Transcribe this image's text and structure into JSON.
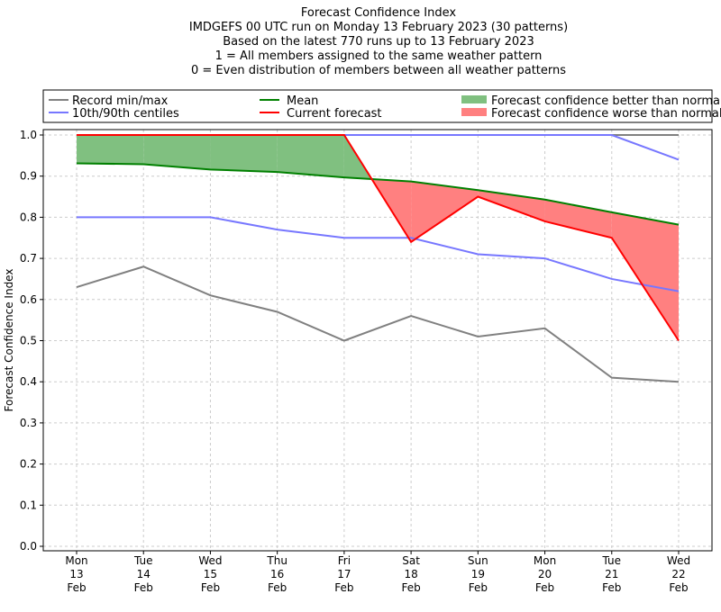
{
  "chart_data": {
    "type": "line",
    "title_lines": [
      "Forecast Confidence Index",
      "IMDGEFS 00 UTC run on Monday 13 February 2023 (30 patterns)",
      "Based on the latest 770 runs up to 13 February 2023",
      "1 = All members assigned to the same weather pattern",
      "0 = Even distribution of members between all weather patterns"
    ],
    "ylabel": "Forecast Confidence Index",
    "ylim": [
      0,
      1
    ],
    "yticks": [
      "0.0",
      "0.1",
      "0.2",
      "0.3",
      "0.4",
      "0.5",
      "0.6",
      "0.7",
      "0.8",
      "0.9",
      "1.0"
    ],
    "categories": [
      [
        "Mon",
        "13",
        "Feb"
      ],
      [
        "Tue",
        "14",
        "Feb"
      ],
      [
        "Wed",
        "15",
        "Feb"
      ],
      [
        "Thu",
        "16",
        "Feb"
      ],
      [
        "Fri",
        "17",
        "Feb"
      ],
      [
        "Sat",
        "18",
        "Feb"
      ],
      [
        "Sun",
        "19",
        "Feb"
      ],
      [
        "Mon",
        "20",
        "Feb"
      ],
      [
        "Tue",
        "21",
        "Feb"
      ],
      [
        "Wed",
        "22",
        "Feb"
      ]
    ],
    "grid": true,
    "legend_position": "top",
    "legend": {
      "record": "Record min/max",
      "centiles": "10th/90th centiles",
      "mean": "Mean",
      "current": "Current forecast",
      "better": "Forecast confidence better than normal",
      "worse": "Forecast confidence worse than normal"
    },
    "series": {
      "record_max": [
        1.0,
        1.0,
        1.0,
        1.0,
        1.0,
        1.0,
        1.0,
        1.0,
        1.0,
        1.0
      ],
      "record_min": [
        0.63,
        0.68,
        0.61,
        0.57,
        0.5,
        0.56,
        0.51,
        0.53,
        0.41,
        0.4
      ],
      "centile_90": [
        1.0,
        1.0,
        1.0,
        1.0,
        1.0,
        1.0,
        1.0,
        1.0,
        1.0,
        0.94
      ],
      "centile_10": [
        0.8,
        0.8,
        0.8,
        0.77,
        0.75,
        0.75,
        0.71,
        0.7,
        0.65,
        0.62
      ],
      "mean": [
        0.931,
        0.929,
        0.916,
        0.91,
        0.897,
        0.887,
        0.866,
        0.843,
        0.812,
        0.782
      ],
      "current": [
        1.0,
        1.0,
        1.0,
        1.0,
        1.0,
        0.74,
        0.85,
        0.79,
        0.75,
        0.5
      ]
    },
    "colors": {
      "record": "#808080",
      "centiles": "#7777ff",
      "mean": "#008000",
      "current": "#ff0000",
      "better": "#80c080",
      "worse": "#ff8080"
    }
  }
}
